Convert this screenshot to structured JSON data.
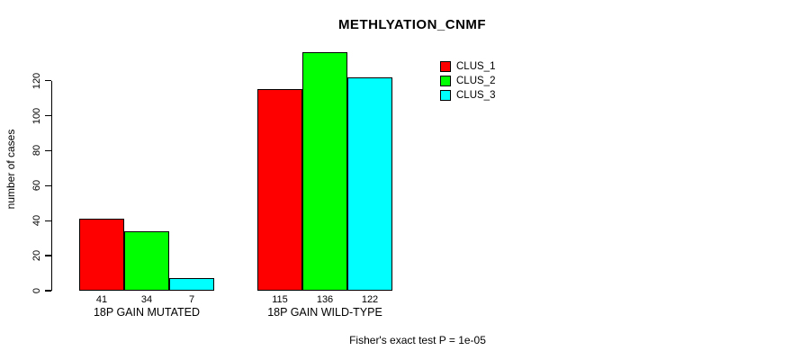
{
  "title": "METHLYATION_CNMF",
  "ylabel": "number of cases",
  "footer": "Fisher's exact test P = 1e-05",
  "colors": {
    "clus_1": "#FF0000",
    "clus_2": "#00FF00",
    "clus_3": "#00FFFF",
    "axis": "#000000",
    "background": "#FFFFFF"
  },
  "legend": {
    "position": "top-right",
    "items": [
      {
        "label": "CLUS_1",
        "color": "#FF0000"
      },
      {
        "label": "CLUS_2",
        "color": "#00FF00"
      },
      {
        "label": "CLUS_3",
        "color": "#00FFFF"
      }
    ]
  },
  "chart_data": {
    "type": "bar",
    "title": "METHLYATION_CNMF",
    "xlabel": "",
    "ylabel": "number of cases",
    "categories": [
      "18P GAIN MUTATED",
      "18P GAIN WILD-TYPE"
    ],
    "series": [
      {
        "name": "CLUS_1",
        "color": "#FF0000",
        "values": [
          41,
          115
        ]
      },
      {
        "name": "CLUS_2",
        "color": "#00FF00",
        "values": [
          34,
          136
        ]
      },
      {
        "name": "CLUS_3",
        "color": "#00FFFF",
        "values": [
          7,
          122
        ]
      }
    ],
    "bar_value_labels": [
      [
        41,
        34,
        7
      ],
      [
        115,
        136,
        122
      ]
    ],
    "yticks": [
      0,
      20,
      40,
      60,
      80,
      100,
      120
    ],
    "ylim": [
      0,
      136
    ],
    "grid": false,
    "legend_position": "top-right",
    "annotation": "Fisher's exact test P = 1e-05"
  }
}
